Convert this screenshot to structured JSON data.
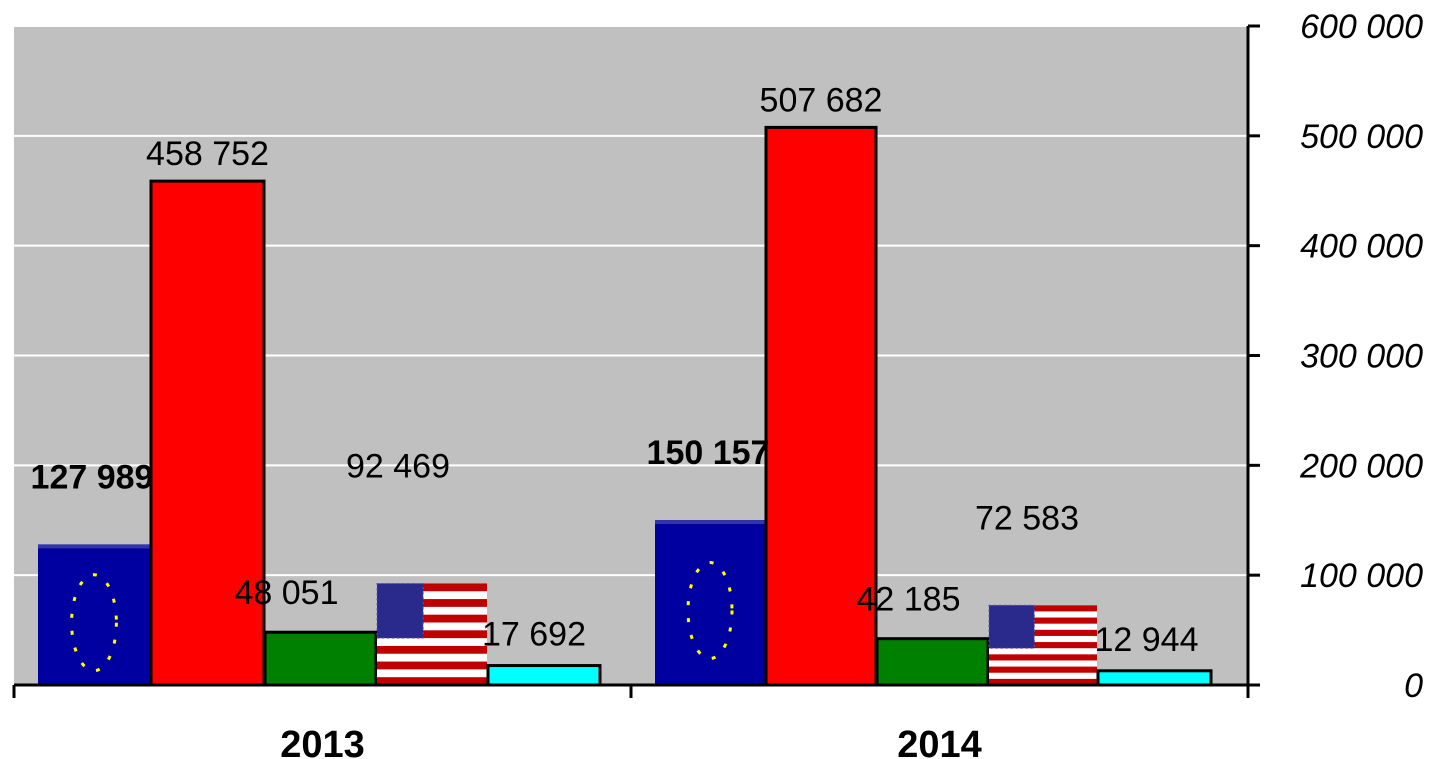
{
  "chart_data": {
    "type": "bar",
    "categories": [
      "2013",
      "2014"
    ],
    "series": [
      {
        "values": [
          127989,
          150157
        ],
        "color": "#0000a0",
        "fill": "eu-flag",
        "labels": [
          "127 989",
          "150 157"
        ],
        "label_bold": true
      },
      {
        "values": [
          458752,
          507682
        ],
        "color": "#ff0000",
        "labels": [
          "458 752",
          "507 682"
        ]
      },
      {
        "values": [
          48051,
          42185
        ],
        "color": "#008000",
        "labels": [
          "48 051",
          "42 185"
        ]
      },
      {
        "values": [
          92469,
          72583
        ],
        "color": "#c00000",
        "fill": "us-flag",
        "labels": [
          "92 469",
          "72 583"
        ]
      },
      {
        "values": [
          17692,
          12944
        ],
        "color": "#00ffff",
        "labels": [
          "17 692",
          "12 944"
        ]
      }
    ],
    "y_ticks": [
      "0",
      "100 000",
      "200 000",
      "300 000",
      "400 000",
      "500 000",
      "600 000"
    ],
    "ylim": [
      0,
      600000
    ],
    "y_axis_side": "right",
    "grid": true,
    "plot_background": "#c0c0c0",
    "gridline_color": "#ffffff",
    "legend": "none"
  }
}
